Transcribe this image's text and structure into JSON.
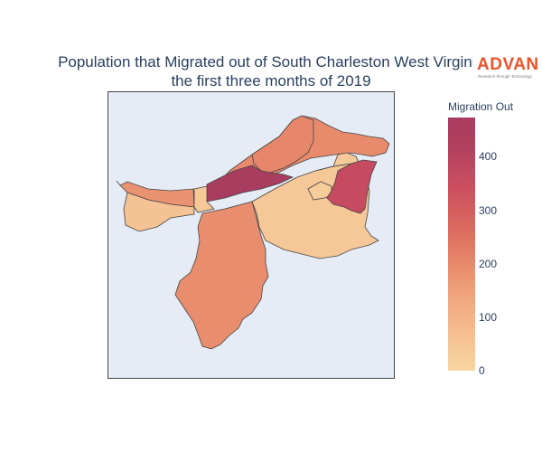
{
  "title": {
    "line1": "Population that Migrated out of South Charleston West Virginia",
    "line2": "the first three months of 2019"
  },
  "logo": {
    "brand": "ADVAN",
    "tagline": "Research through Technology",
    "color": "#e8552b"
  },
  "colorbar": {
    "title": "Migration Out",
    "ticks": [
      "400",
      "300",
      "200",
      "100",
      "0"
    ],
    "range": [
      0,
      480
    ],
    "colorscale": [
      "#f7d6a2",
      "#f3ad84",
      "#e98f6f",
      "#dd6b5e",
      "#cc4f60",
      "#b3405f",
      "#a83c60"
    ]
  },
  "map": {
    "background": "#e5ecf6",
    "border_color": "#444444",
    "regions": [
      {
        "id": "northern-ridge",
        "value": 170
      },
      {
        "id": "north-central",
        "value": 180
      },
      {
        "id": "highlighted-center",
        "value": 470
      },
      {
        "id": "west-strip",
        "value": 150
      },
      {
        "id": "west-lower",
        "value": 40
      },
      {
        "id": "small-gap",
        "value": 30
      },
      {
        "id": "southern-large",
        "value": 165
      },
      {
        "id": "east-large",
        "value": 30
      },
      {
        "id": "east-small",
        "value": 25
      },
      {
        "id": "east-notch",
        "value": 20
      },
      {
        "id": "east-red",
        "value": 340
      }
    ]
  }
}
